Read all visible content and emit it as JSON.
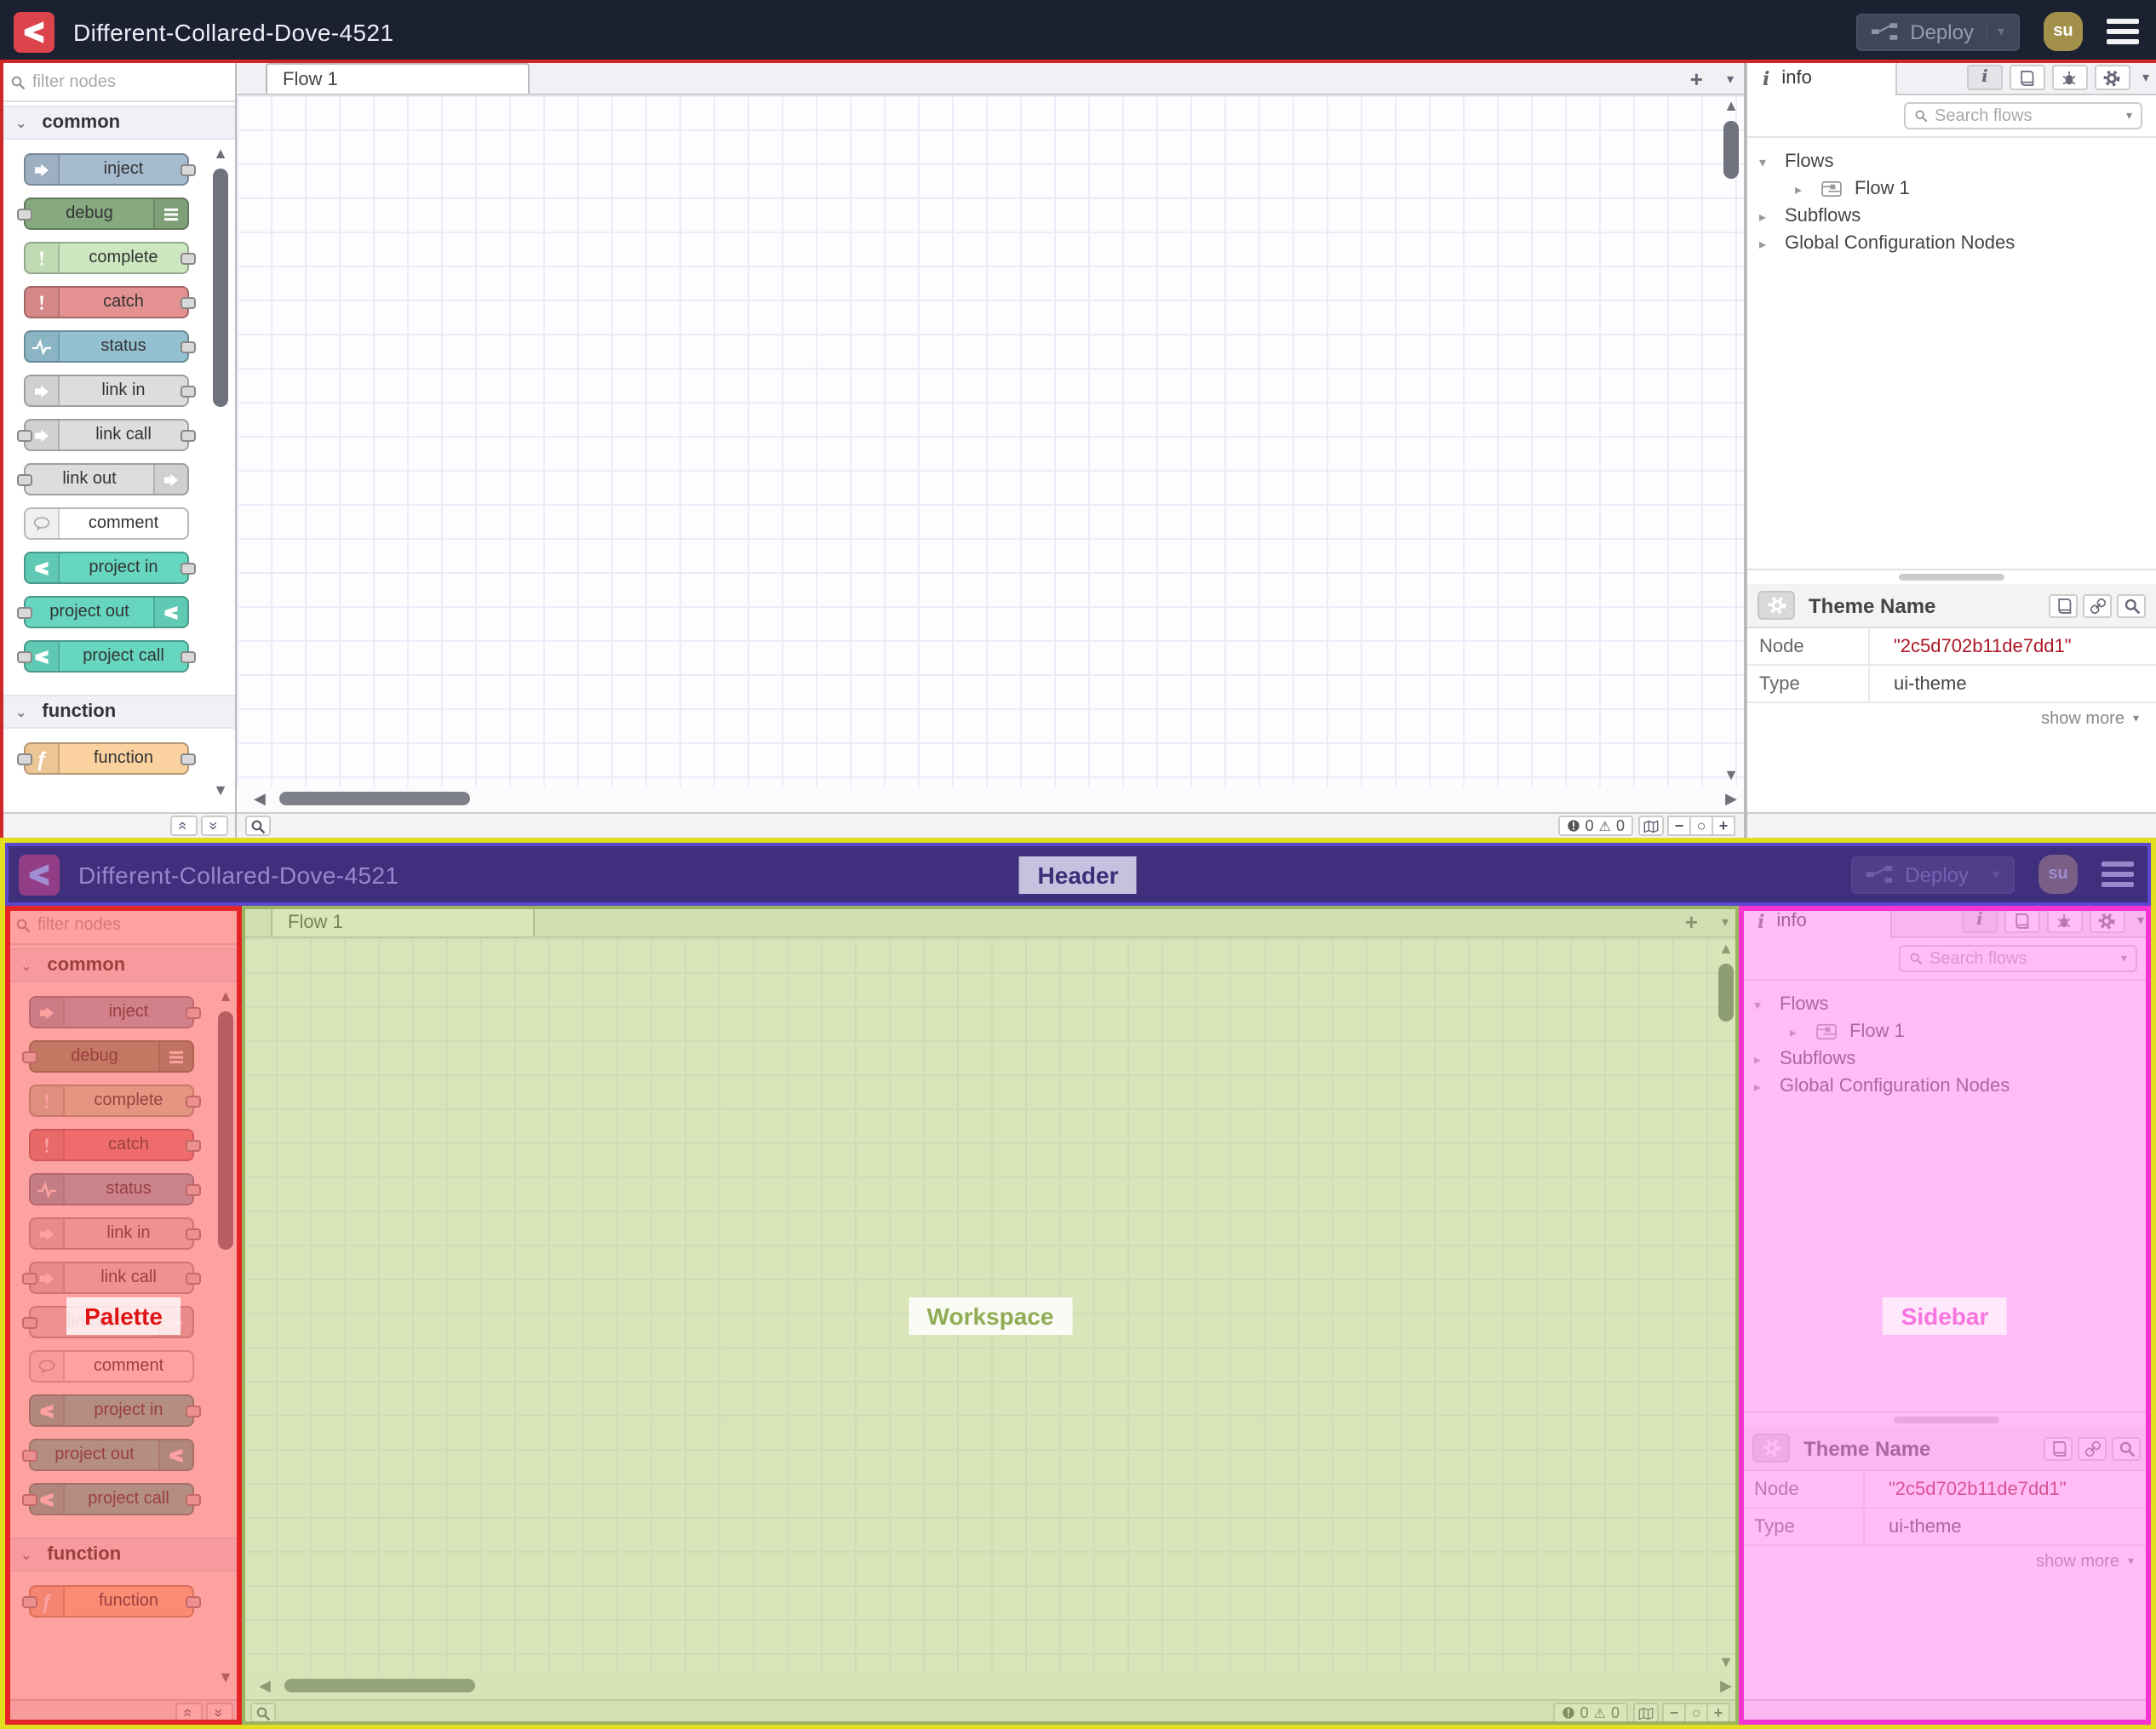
{
  "header": {
    "title": "Different-Collared-Dove-4521",
    "deploy_label": "Deploy",
    "avatar_initials": "su"
  },
  "palette": {
    "filter_placeholder": "filter nodes",
    "categories": [
      {
        "label": "common",
        "nodes": [
          {
            "label": "inject",
            "color": "#a6bbcf",
            "icon": "arrow-right",
            "icon_side": "left",
            "ports": "right"
          },
          {
            "label": "debug",
            "color": "#87a980",
            "icon": "list",
            "icon_side": "right",
            "ports": "left"
          },
          {
            "label": "complete",
            "color": "#cde8c0",
            "icon": "exclamation",
            "icon_side": "left",
            "ports": "right"
          },
          {
            "label": "catch",
            "color": "#e49191",
            "icon": "exclamation",
            "icon_side": "left",
            "ports": "right"
          },
          {
            "label": "status",
            "color": "#94c1d1",
            "icon": "pulse",
            "icon_side": "left",
            "ports": "right"
          },
          {
            "label": "link in",
            "color": "#dddddd",
            "icon": "link-arrow",
            "icon_side": "left",
            "ports": "right"
          },
          {
            "label": "link call",
            "color": "#dddddd",
            "icon": "link-arrow",
            "icon_side": "left",
            "ports": "both"
          },
          {
            "label": "link out",
            "color": "#dddddd",
            "icon": "link-arrow",
            "icon_side": "right",
            "ports": "left"
          },
          {
            "label": "comment",
            "color": "#ffffff",
            "icon": "comment",
            "icon_side": "left",
            "ports": "none",
            "icon_color": "#b0b0b0"
          },
          {
            "label": "project in",
            "color": "#66d6c0",
            "icon": "fork",
            "icon_side": "left",
            "ports": "right"
          },
          {
            "label": "project out",
            "color": "#66d6c0",
            "icon": "fork",
            "icon_side": "right",
            "ports": "left"
          },
          {
            "label": "project call",
            "color": "#66d6c0",
            "icon": "fork",
            "icon_side": "left",
            "ports": "both"
          }
        ]
      },
      {
        "label": "function",
        "nodes": [
          {
            "label": "function",
            "color": "#fbd29f",
            "icon": "function-glyph",
            "icon_side": "left",
            "ports": "both"
          }
        ]
      }
    ]
  },
  "workspace": {
    "tab_label": "Flow 1",
    "error_count": "0",
    "warning_count": "0"
  },
  "sidebar": {
    "tab_label": "info",
    "search_placeholder": "Search flows",
    "tree": {
      "flows_label": "Flows",
      "flow1_label": "Flow 1",
      "subflows_label": "Subflows",
      "global_label": "Global Configuration Nodes"
    },
    "panel": {
      "title": "Theme Name",
      "rows": [
        {
          "key": "Node",
          "value": "\"2c5d702b11de7dd1\"",
          "red": true
        },
        {
          "key": "Type",
          "value": "ui-theme",
          "red": false
        }
      ],
      "show_more_label": "show more"
    }
  },
  "annotations": {
    "header_label": "Header",
    "palette_label": "Palette",
    "workspace_label": "Workspace",
    "sidebar_label": "Sidebar"
  },
  "icons": {
    "chevron_down": "▾",
    "chevron_right": "▸",
    "chevron_wide": "⌄",
    "plus": "+",
    "minus": "−",
    "zoom_reset": "○",
    "double_chevron_left": "«",
    "double_chevron_right": "»",
    "function_glyph": "ƒ",
    "info_glyph": "i",
    "warning_glyph": "⚠"
  },
  "colors": {
    "header_bg": "#1c2132",
    "brand_red": "#dd434b",
    "avatar_bg": "#a3914b",
    "node_id_red": "#ad1625",
    "overlay_header": "#5a48cf",
    "overlay_palette": "#e32525",
    "overlay_workspace": "#9ab45f",
    "overlay_sidebar": "#f733d2",
    "frame_yellow": "#e3de1d"
  }
}
